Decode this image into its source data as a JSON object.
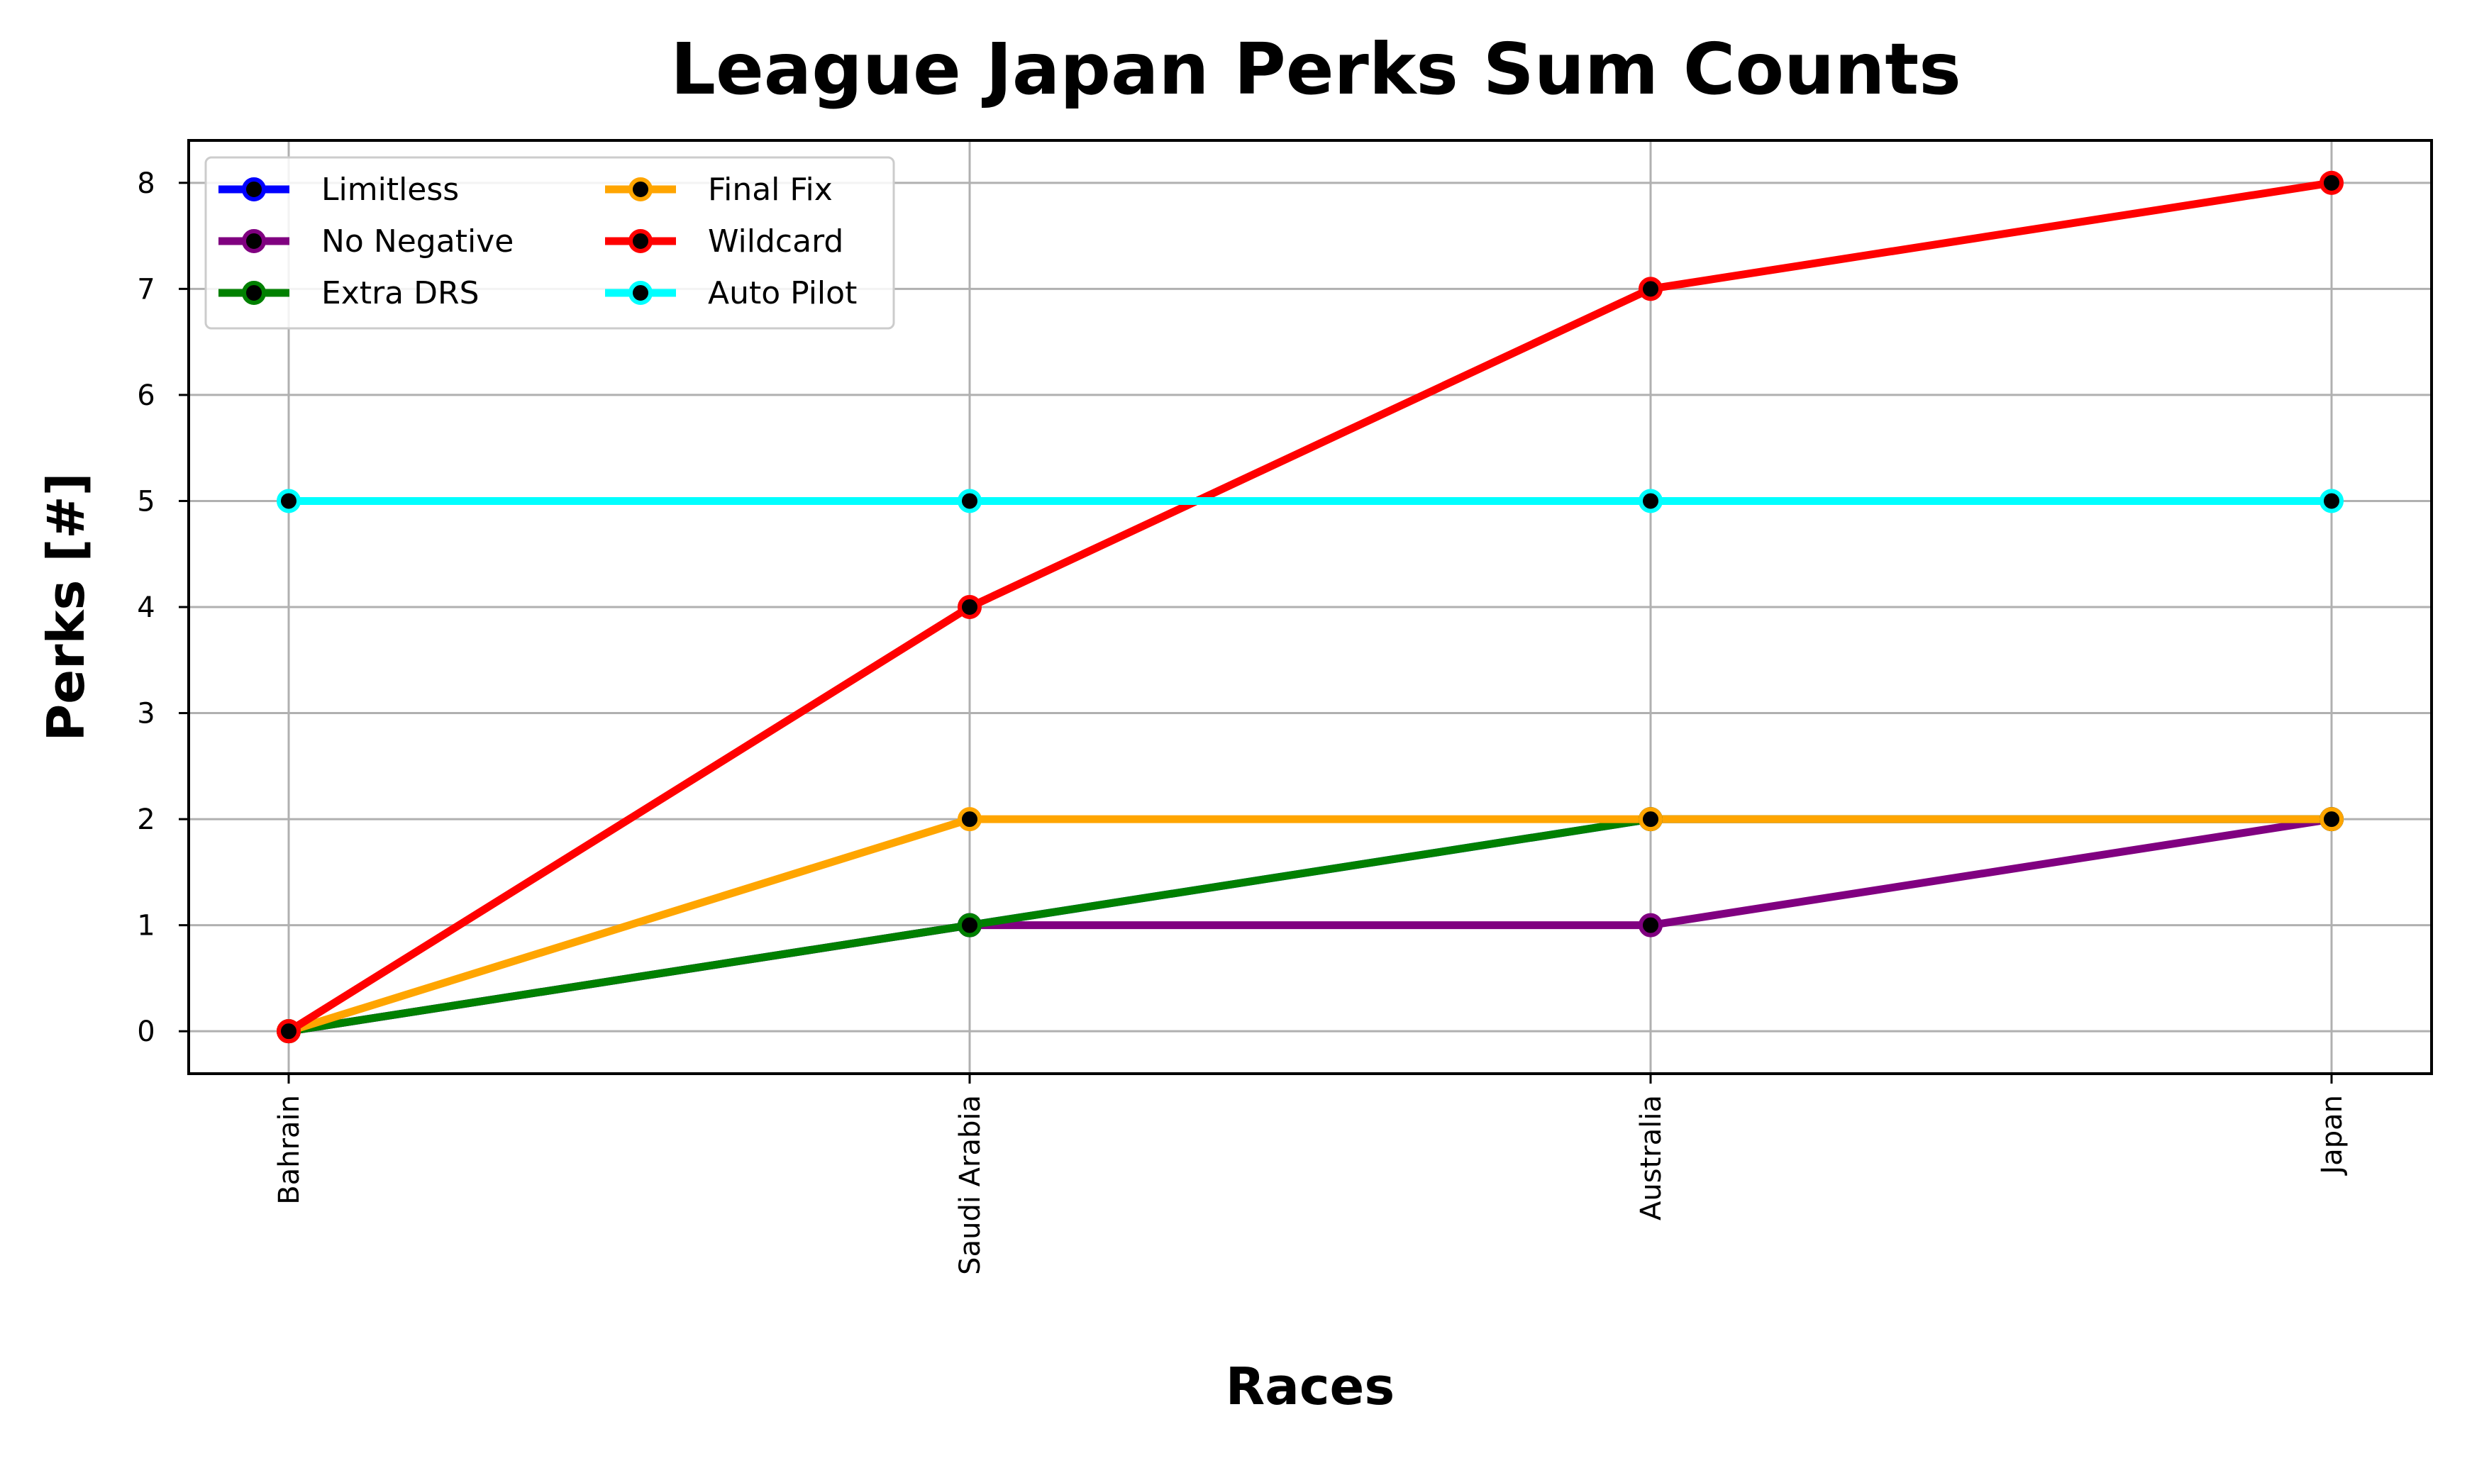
{
  "chart_data": {
    "type": "line",
    "title": "League Japan Perks Sum Counts",
    "xlabel": "Races",
    "ylabel": "Perks [#]",
    "categories": [
      "Bahrain",
      "Saudi Arabia",
      "Australia",
      "Japan"
    ],
    "ylim": [
      -0.4,
      8.4
    ],
    "yticks": [
      0,
      1,
      2,
      3,
      4,
      5,
      6,
      7,
      8
    ],
    "grid": true,
    "legend_position": "top-left",
    "legend_columns": 2,
    "marker_fill": "#000000",
    "series": [
      {
        "name": "Limitless",
        "color": "#0000ff",
        "values": [
          0,
          1,
          2,
          2
        ]
      },
      {
        "name": "No Negative",
        "color": "#800080",
        "values": [
          0,
          1,
          1,
          2
        ]
      },
      {
        "name": "Extra DRS",
        "color": "#008000",
        "values": [
          0,
          1,
          2,
          2
        ]
      },
      {
        "name": "Final Fix",
        "color": "#ffa500",
        "values": [
          0,
          2,
          2,
          2
        ]
      },
      {
        "name": "Wildcard",
        "color": "#ff0000",
        "values": [
          0,
          4,
          7,
          8
        ]
      },
      {
        "name": "Auto Pilot",
        "color": "#00ffff",
        "values": [
          5,
          5,
          5,
          5
        ]
      }
    ]
  }
}
